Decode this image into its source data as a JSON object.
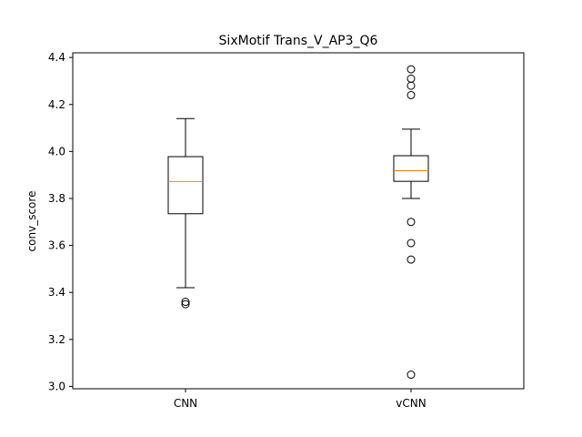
{
  "chart_data": {
    "type": "box",
    "title": "SixMotif Trans_V_AP3_Q6",
    "xlabel": "",
    "ylabel": "conv_score",
    "ylim": [
      2.99,
      4.42
    ],
    "yticks": [
      "3.0",
      "3.2",
      "3.4",
      "3.6",
      "3.8",
      "4.0",
      "4.2",
      "4.4"
    ],
    "ytick_values": [
      3.0,
      3.2,
      3.4,
      3.6,
      3.8,
      4.0,
      4.2,
      4.4
    ],
    "categories": [
      "CNN",
      "vCNN"
    ],
    "boxes": [
      {
        "category": "CNN",
        "whisker_low": 3.42,
        "q1": 3.735,
        "median": 3.872,
        "q3": 3.978,
        "whisker_high": 4.14,
        "outliers": [
          3.36,
          3.35
        ]
      },
      {
        "category": "vCNN",
        "whisker_low": 3.8,
        "q1": 3.873,
        "median": 3.918,
        "q3": 3.982,
        "whisker_high": 4.095,
        "outliers": [
          4.35,
          4.31,
          4.28,
          4.24,
          3.7,
          3.61,
          3.54,
          3.05
        ]
      }
    ],
    "colors": {
      "box": "#000000",
      "median": "#ff7f0e",
      "whisker": "#000000",
      "flier": "#000000"
    },
    "grid": false
  }
}
